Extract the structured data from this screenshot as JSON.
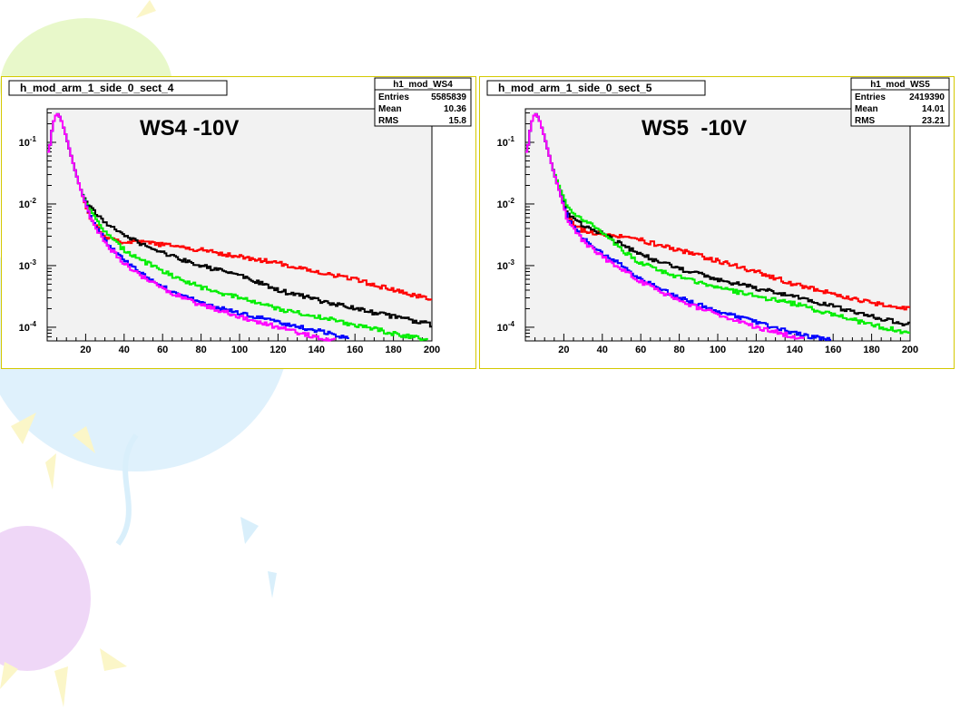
{
  "background": {
    "balloon_colors": [
      "#e6f7c4",
      "#d9effb",
      "#eed5f7",
      "#fbf6c8"
    ],
    "balloon_icons": [
      "balloon",
      "sun-ray"
    ]
  },
  "chart_data": [
    {
      "type": "line",
      "title": "h_mod_arm_1_side_0_sect_4",
      "annotation": "WS4 -10V",
      "y_scale": "log",
      "xlim": [
        0,
        200
      ],
      "ylim": [
        6e-05,
        0.35
      ],
      "x_ticks": [
        "20",
        "40",
        "60",
        "80",
        "100",
        "120",
        "140",
        "160",
        "180",
        "200"
      ],
      "y_ticks": [
        {
          "base": "10",
          "exp": "-1",
          "value": 0.1
        },
        {
          "base": "10",
          "exp": "-2",
          "value": 0.01
        },
        {
          "base": "10",
          "exp": "-3",
          "value": 0.001
        },
        {
          "base": "10",
          "exp": "-4",
          "value": 0.0001
        }
      ],
      "stats": {
        "name": "h1_mod_WS4",
        "rows": [
          {
            "label": "Entries",
            "value": "5585839"
          },
          {
            "label": "Mean",
            "value": "10.36"
          },
          {
            "label": "RMS",
            "value": "15.8"
          }
        ]
      },
      "legend_position": "top-right",
      "grid": false,
      "series": [
        {
          "color": "#ff0000",
          "x": [
            1,
            3,
            5,
            7,
            10,
            14,
            18,
            22,
            30,
            40,
            50,
            60,
            80,
            100,
            120,
            140,
            160,
            180,
            200
          ],
          "values": [
            0.07,
            0.2,
            0.3,
            0.25,
            0.12,
            0.04,
            0.015,
            0.006,
            0.003,
            0.0024,
            0.0024,
            0.0022,
            0.0018,
            0.0014,
            0.0011,
            0.0008,
            0.0006,
            0.0004,
            0.00028
          ]
        },
        {
          "color": "#000000",
          "x": [
            1,
            3,
            5,
            7,
            10,
            14,
            18,
            22,
            30,
            40,
            50,
            60,
            80,
            100,
            120,
            140,
            160,
            180,
            200
          ],
          "values": [
            0.07,
            0.2,
            0.3,
            0.25,
            0.12,
            0.04,
            0.015,
            0.009,
            0.005,
            0.0032,
            0.0022,
            0.0016,
            0.001,
            0.0007,
            0.0004,
            0.00028,
            0.0002,
            0.00015,
            0.00011
          ]
        },
        {
          "color": "#00ee00",
          "x": [
            1,
            3,
            5,
            7,
            10,
            14,
            18,
            22,
            30,
            40,
            50,
            60,
            80,
            100,
            120,
            140,
            160,
            180,
            200
          ],
          "values": [
            0.07,
            0.2,
            0.3,
            0.25,
            0.12,
            0.04,
            0.015,
            0.008,
            0.0035,
            0.0018,
            0.0012,
            0.0008,
            0.00045,
            0.0003,
            0.0002,
            0.00015,
            0.00011,
            8e-05,
            6e-05
          ]
        },
        {
          "color": "#0000ff",
          "x": [
            1,
            3,
            5,
            7,
            10,
            14,
            18,
            22,
            30,
            40,
            50,
            60,
            80,
            100,
            120,
            140,
            160
          ],
          "values": [
            0.07,
            0.2,
            0.3,
            0.25,
            0.12,
            0.04,
            0.015,
            0.007,
            0.0025,
            0.0012,
            0.0007,
            0.00045,
            0.00025,
            0.00017,
            0.00012,
            9e-05,
            6e-05
          ]
        },
        {
          "color": "#ff00ff",
          "x": [
            1,
            3,
            5,
            7,
            10,
            14,
            18,
            22,
            30,
            40,
            50,
            60,
            80,
            100,
            120,
            140,
            150
          ],
          "values": [
            0.07,
            0.2,
            0.3,
            0.25,
            0.12,
            0.04,
            0.015,
            0.0065,
            0.0023,
            0.0011,
            0.00065,
            0.00042,
            0.00023,
            0.00015,
            0.0001,
            7e-05,
            6e-05
          ]
        }
      ]
    },
    {
      "type": "line",
      "title": "h_mod_arm_1_side_0_sect_5",
      "annotation": "WS5  -10V",
      "y_scale": "log",
      "xlim": [
        0,
        200
      ],
      "ylim": [
        6e-05,
        0.35
      ],
      "x_ticks": [
        "20",
        "40",
        "60",
        "80",
        "100",
        "120",
        "140",
        "160",
        "180",
        "200"
      ],
      "y_ticks": [
        {
          "base": "10",
          "exp": "-1",
          "value": 0.1
        },
        {
          "base": "10",
          "exp": "-2",
          "value": 0.01
        },
        {
          "base": "10",
          "exp": "-3",
          "value": 0.001
        },
        {
          "base": "10",
          "exp": "-4",
          "value": 0.0001
        }
      ],
      "stats": {
        "name": "h1_mod_WS5",
        "rows": [
          {
            "label": "Entries",
            "value": "2419390"
          },
          {
            "label": "Mean",
            "value": "14.01"
          },
          {
            "label": "RMS",
            "value": "23.21"
          }
        ]
      },
      "legend_position": "top-right",
      "grid": false,
      "series": [
        {
          "color": "#ff0000",
          "x": [
            1,
            3,
            5,
            7,
            10,
            14,
            18,
            22,
            30,
            40,
            50,
            60,
            80,
            100,
            120,
            140,
            160,
            180,
            200
          ],
          "values": [
            0.07,
            0.2,
            0.3,
            0.25,
            0.12,
            0.04,
            0.015,
            0.006,
            0.0037,
            0.0033,
            0.003,
            0.0026,
            0.0018,
            0.0012,
            0.0008,
            0.0005,
            0.00035,
            0.00025,
            0.0002
          ]
        },
        {
          "color": "#000000",
          "x": [
            1,
            3,
            5,
            7,
            10,
            14,
            18,
            22,
            30,
            40,
            50,
            60,
            80,
            100,
            120,
            140,
            160,
            180,
            200
          ],
          "values": [
            0.07,
            0.2,
            0.3,
            0.25,
            0.12,
            0.04,
            0.015,
            0.007,
            0.0045,
            0.0033,
            0.0022,
            0.0015,
            0.0009,
            0.0006,
            0.00043,
            0.00032,
            0.00022,
            0.00015,
            0.00011
          ]
        },
        {
          "color": "#00ee00",
          "x": [
            1,
            3,
            5,
            7,
            10,
            14,
            18,
            22,
            30,
            40,
            50,
            60,
            80,
            100,
            120,
            140,
            160,
            180,
            200
          ],
          "values": [
            0.07,
            0.2,
            0.3,
            0.25,
            0.12,
            0.04,
            0.018,
            0.009,
            0.0055,
            0.0035,
            0.0018,
            0.0011,
            0.00065,
            0.00045,
            0.00032,
            0.00024,
            0.00016,
            0.00011,
            8e-05
          ]
        },
        {
          "color": "#0000ff",
          "x": [
            1,
            3,
            5,
            7,
            10,
            14,
            18,
            22,
            30,
            40,
            50,
            60,
            80,
            100,
            120,
            140,
            160,
            170
          ],
          "values": [
            0.07,
            0.2,
            0.3,
            0.25,
            0.12,
            0.04,
            0.015,
            0.006,
            0.0028,
            0.0016,
            0.001,
            0.0006,
            0.0003,
            0.00018,
            0.00012,
            8e-05,
            6e-05,
            6e-05
          ]
        },
        {
          "color": "#ff00ff",
          "x": [
            1,
            3,
            5,
            7,
            10,
            14,
            18,
            22,
            30,
            40,
            50,
            60,
            80,
            100,
            120,
            140,
            150
          ],
          "values": [
            0.07,
            0.2,
            0.3,
            0.25,
            0.12,
            0.04,
            0.015,
            0.0055,
            0.0025,
            0.0014,
            0.0009,
            0.00055,
            0.00027,
            0.00016,
            0.0001,
            7e-05,
            6e-05
          ]
        }
      ]
    }
  ]
}
